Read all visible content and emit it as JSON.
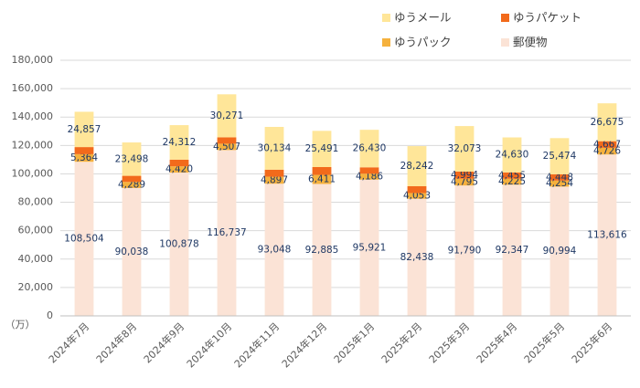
{
  "chart_data": {
    "type": "stacked_bar",
    "y_unit_label": "（万）",
    "categories": [
      "2024年7月",
      "2024年8月",
      "2024年9月",
      "2024年10月",
      "2024年11月",
      "2024年12月",
      "2025年1月",
      "2025年2月",
      "2025年3月",
      "2025年4月",
      "2025年5月",
      "2025年6月"
    ],
    "series": [
      {
        "name": "郵便物",
        "color": "#fbe3d6",
        "values": [
          108504,
          90038,
          100878,
          116737,
          93048,
          92885,
          95921,
          82438,
          91790,
          92347,
          90994,
          113616
        ],
        "value_labels": [
          "108,504",
          "90,038",
          "100,878",
          "116,737",
          "93,048",
          "92,885",
          "95,921",
          "82,438",
          "91,790",
          "92,347",
          "90,994",
          "113,616"
        ]
      },
      {
        "name": "ゆうパック",
        "color": "#f5b13d",
        "values": [
          5364,
          4289,
          4420,
          4507,
          4897,
          6411,
          4186,
          4053,
          4795,
          4225,
          4254,
          4726
        ],
        "value_labels": [
          "5,364",
          "4,289",
          "4,420",
          "4,507",
          "4,897",
          "6,411",
          "4,186",
          "4,053",
          "4,795",
          "4,225",
          "4,254",
          "4,726"
        ]
      },
      {
        "name": "ゆうパケット",
        "color": "#f26a1b",
        "values": [
          5000,
          4300,
          4700,
          4500,
          5000,
          5500,
          4500,
          4800,
          4994,
          4455,
          4448,
          4667
        ],
        "value_labels": [
          null,
          null,
          null,
          null,
          null,
          null,
          null,
          null,
          "4,994",
          "4,455",
          "4,448",
          "4,667"
        ]
      },
      {
        "name": "ゆうメール",
        "color": "#ffe699",
        "values": [
          24857,
          23498,
          24312,
          30271,
          30134,
          25491,
          26430,
          28242,
          32073,
          24630,
          25474,
          26675
        ],
        "value_labels": [
          "24,857",
          "23,498",
          "24,312",
          "30,271",
          "30,134",
          "25,491",
          "26,430",
          "28,242",
          "32,073",
          "24,630",
          "25,474",
          "26,675"
        ]
      }
    ],
    "ylim": [
      0,
      180000
    ],
    "yticks": [
      0,
      {
        "value": 20000,
        "label": "20,000"
      },
      {
        "value": 40000,
        "label": "40,000"
      },
      {
        "value": 60000,
        "label": "60,000"
      },
      {
        "value": 80000,
        "label": "80,000"
      },
      {
        "value": 100000,
        "label": "100,000"
      },
      {
        "value": 120000,
        "label": "120,000"
      },
      {
        "value": 140000,
        "label": "140,000"
      },
      {
        "value": 160000,
        "label": "160,000"
      },
      {
        "value": 180000,
        "label": "180,000"
      }
    ],
    "grid": true
  }
}
